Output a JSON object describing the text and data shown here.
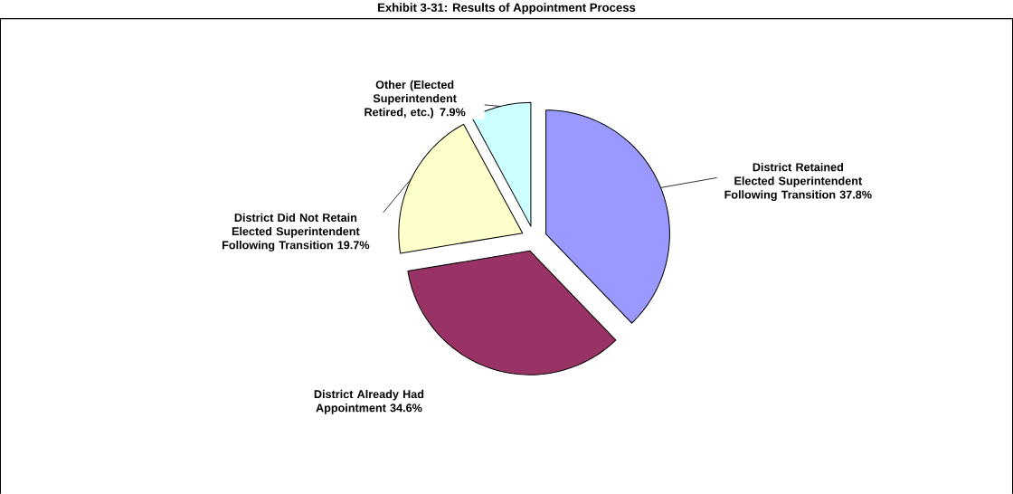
{
  "chart_data": {
    "type": "pie",
    "title": "Exhibit 3-31: Results of Appointment Process",
    "categories": [
      "District Retained Elected Superintendent Following Transition",
      "District Already Had Appointment",
      "District Did Not Retain Elected Superintendent Following Transition",
      "Other (Elected Superintendent Retired, etc.)"
    ],
    "values": [
      37.8,
      34.6,
      19.7,
      7.9
    ],
    "value_labels": [
      "37.8%",
      "34.6%",
      "19.7%",
      "7.9%"
    ],
    "colors": [
      "#9999ff",
      "#993366",
      "#ffffcc",
      "#ccffff"
    ]
  }
}
